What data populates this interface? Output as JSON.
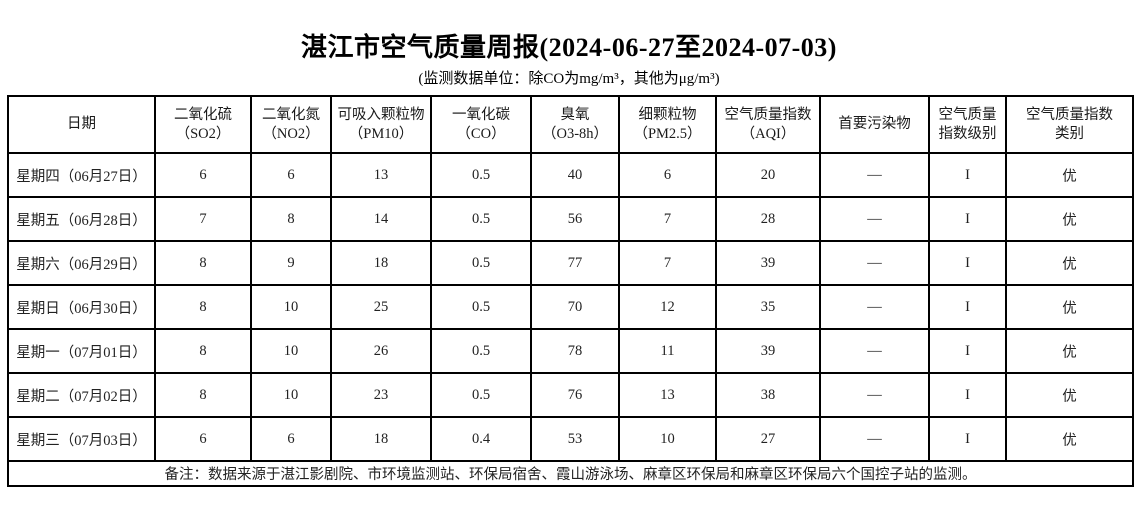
{
  "page": {
    "title": "湛江市空气质量周报(2024-06-27至2024-07-03)",
    "subtitle": "(监测数据单位：除CO为mg/m³，其他为μg/m³)"
  },
  "table": {
    "columns": [
      "日期",
      "二氧化硫\n（SO2）",
      "二氧化氮\n（NO2）",
      "可吸入颗粒物\n（PM10）",
      "一氧化碳\n（CO）",
      "臭氧\n（O3-8h）",
      "细颗粒物\n（PM2.5）",
      "空气质量指数\n（AQI）",
      "首要污染物",
      "空气质量\n指数级别",
      "空气质量指数\n类别"
    ],
    "rows": [
      [
        "星期四（06月27日）",
        "6",
        "6",
        "13",
        "0.5",
        "40",
        "6",
        "20",
        "—",
        "I",
        "优"
      ],
      [
        "星期五（06月28日）",
        "7",
        "8",
        "14",
        "0.5",
        "56",
        "7",
        "28",
        "—",
        "I",
        "优"
      ],
      [
        "星期六（06月29日）",
        "8",
        "9",
        "18",
        "0.5",
        "77",
        "7",
        "39",
        "—",
        "I",
        "优"
      ],
      [
        "星期日（06月30日）",
        "8",
        "10",
        "25",
        "0.5",
        "70",
        "12",
        "35",
        "—",
        "I",
        "优"
      ],
      [
        "星期一（07月01日）",
        "8",
        "10",
        "26",
        "0.5",
        "78",
        "11",
        "39",
        "—",
        "I",
        "优"
      ],
      [
        "星期二（07月02日）",
        "8",
        "10",
        "23",
        "0.5",
        "76",
        "13",
        "38",
        "—",
        "I",
        "优"
      ],
      [
        "星期三（07月03日）",
        "6",
        "6",
        "18",
        "0.4",
        "53",
        "10",
        "27",
        "—",
        "I",
        "优"
      ]
    ],
    "note": "备注：数据来源于湛江影剧院、市环境监测站、环保局宿舍、霞山游泳场、麻章区环保局和麻章区环保局六个国控子站的监测。"
  },
  "colors": {
    "background": "#ffffff",
    "border": "#000000",
    "text": "#000000"
  }
}
